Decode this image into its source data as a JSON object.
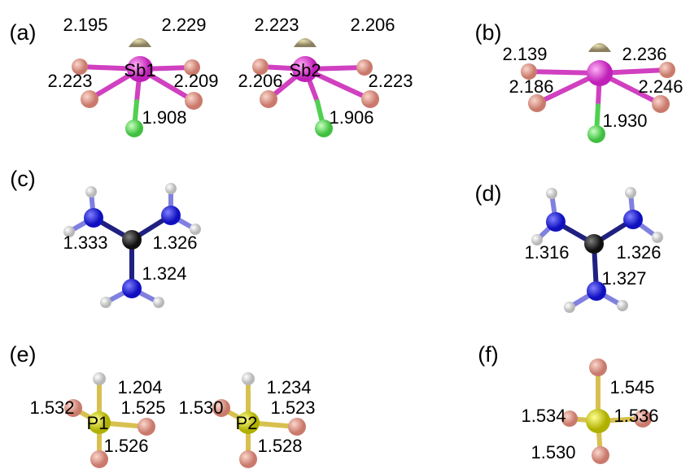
{
  "panels": [
    {
      "label": "(a)",
      "molecules": [
        {
          "center": "Sb1",
          "bonds": [
            "2.195",
            "2.229",
            "2.223",
            "2.209",
            "1.908"
          ]
        },
        {
          "center": "Sb2",
          "bonds": [
            "2.223",
            "2.206",
            "2.206",
            "2.223",
            "1.906"
          ]
        }
      ]
    },
    {
      "label": "(b)",
      "molecules": [
        {
          "bonds": [
            "2.139",
            "2.236",
            "2.186",
            "2.246",
            "1.930"
          ]
        }
      ]
    },
    {
      "label": "(c)",
      "molecules": [
        {
          "bonds": [
            "1.333",
            "1.326",
            "1.324"
          ]
        }
      ]
    },
    {
      "label": "(d)",
      "molecules": [
        {
          "bonds": [
            "1.316",
            "1.326",
            "1.327"
          ]
        }
      ]
    },
    {
      "label": "(e)",
      "molecules": [
        {
          "center": "P1",
          "bonds": [
            "1.204",
            "1.532",
            "1.525",
            "1.526"
          ]
        },
        {
          "center": "P2",
          "bonds": [
            "1.234",
            "1.530",
            "1.523",
            "1.528"
          ]
        }
      ]
    },
    {
      "label": "(f)",
      "molecules": [
        {
          "bonds": [
            "1.545",
            "1.534",
            "1.536",
            "1.530"
          ]
        }
      ]
    }
  ]
}
